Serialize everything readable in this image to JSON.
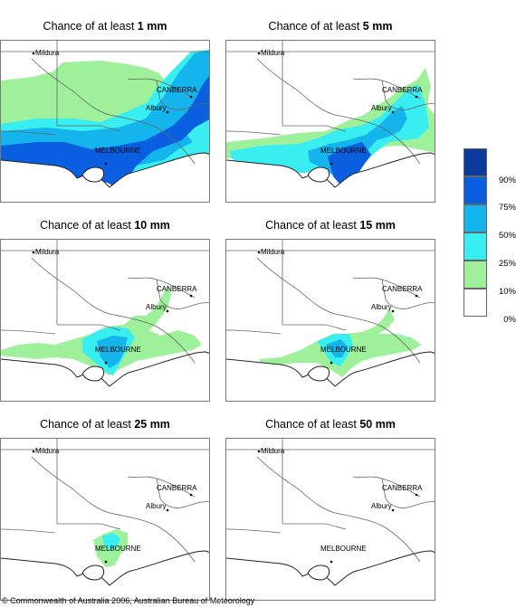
{
  "panels": [
    {
      "prefix": "Chance of at least ",
      "amount": "1 mm"
    },
    {
      "prefix": "Chance of at least ",
      "amount": "5 mm"
    },
    {
      "prefix": "Chance of at least ",
      "amount": "10 mm"
    },
    {
      "prefix": "Chance of at least ",
      "amount": "15 mm"
    },
    {
      "prefix": "Chance of at least ",
      "amount": "25 mm"
    },
    {
      "prefix": "Chance of at least ",
      "amount": "50 mm"
    }
  ],
  "cities": {
    "mildura": "Mildura",
    "canberra": "CANBERRA",
    "albury": "Albury",
    "melbourne": "MELBOURNE"
  },
  "legend": {
    "labels": [
      "90%",
      "75%",
      "50%",
      "25%",
      "10%",
      "0%"
    ],
    "colors": [
      "#0a3a9c",
      "#0a5fe0",
      "#14b4ec",
      "#38eef0",
      "#9ef09a",
      "#ffffff"
    ]
  },
  "footer": "© Commonwealth of Australia 2006, Australian Bureau of Meteorology"
}
